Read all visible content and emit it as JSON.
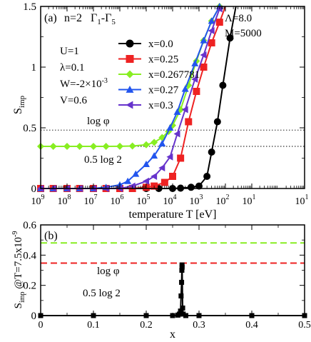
{
  "chart_data": [
    {
      "panel_label": "(a)",
      "type": "line",
      "x_scale": "log",
      "xlim": [
        1e-09,
        10
      ],
      "ylim": [
        0,
        1.5
      ],
      "xlabel": "temperature T [eV]",
      "ylabel_main": "S",
      "ylabel_sub": "imp",
      "x_tick_labels": [
        {
          "value": 1e-09,
          "base": "10",
          "exp": "9"
        },
        {
          "value": 1e-08,
          "base": "10",
          "exp": "8"
        },
        {
          "value": 1e-07,
          "base": "10",
          "exp": "7"
        },
        {
          "value": 1e-06,
          "base": "10",
          "exp": "6"
        },
        {
          "value": 1e-05,
          "base": "10",
          "exp": "5"
        },
        {
          "value": 0.0001,
          "base": "10",
          "exp": "4"
        },
        {
          "value": 0.001,
          "base": "10",
          "exp": "3"
        },
        {
          "value": 0.01,
          "base": "10",
          "exp": "2"
        },
        {
          "value": 0.1,
          "base": "10",
          "exp": "1"
        },
        {
          "value": 10,
          "base": "10",
          "exp": "1"
        }
      ],
      "y_ticks": [
        {
          "value": 0,
          "label": "0"
        },
        {
          "value": 0.5,
          "label": "0.5"
        },
        {
          "value": 1,
          "label": "1"
        },
        {
          "value": 1.5,
          "label": "1.5"
        }
      ],
      "title_parts": {
        "n": "n=2",
        "gamma": "Γ",
        "sub1": "1",
        "dash": "-",
        "sub5": "5"
      },
      "parameters_left": {
        "U": "U=1",
        "lambda": "λ=0.1",
        "W_base": "W=-2×10",
        "W_exp": "-3",
        "V": "V=0.6"
      },
      "parameters_right": {
        "Lambda": "Λ=8.0",
        "M": "M=5000"
      },
      "reference_lines": [
        {
          "label": "log φ",
          "value": 0.481
        },
        {
          "label": "0.5 log 2",
          "value": 0.347
        }
      ],
      "series": [
        {
          "name": "x=0.0",
          "color": "#000000",
          "marker": "circle",
          "x": [
            1e-09,
            3e-09,
            1e-08,
            3e-08,
            1e-07,
            3e-07,
            1e-06,
            3e-06,
            1e-05,
            3e-05,
            0.0001,
            0.0002,
            0.0005,
            0.001,
            0.002,
            0.003,
            0.005,
            0.008,
            0.015,
            0.025
          ],
          "y": [
            0,
            0,
            0,
            0,
            0,
            0,
            0,
            0,
            0,
            0,
            0,
            0.003,
            0.01,
            0.02,
            0.1,
            0.3,
            0.55,
            0.85,
            1.24,
            1.55
          ]
        },
        {
          "name": "x=0.25",
          "color": "#ee2222",
          "marker": "square",
          "x": [
            1e-09,
            3e-09,
            1e-08,
            3e-08,
            1e-07,
            3e-07,
            1e-06,
            3e-06,
            1e-05,
            2e-05,
            5e-05,
            0.0001,
            0.0002,
            0.0004,
            0.0008,
            0.0015,
            0.003,
            0.006,
            0.01
          ],
          "y": [
            0,
            0,
            0,
            0,
            0,
            0,
            0,
            0,
            0.01,
            0.02,
            0.05,
            0.1,
            0.25,
            0.55,
            0.8,
            1.0,
            1.2,
            1.37,
            1.55
          ]
        },
        {
          "name": "x=0.267781",
          "color": "#88ee22",
          "marker": "diamond",
          "x": [
            1e-09,
            3e-09,
            1e-08,
            3e-08,
            1e-07,
            3e-07,
            1e-06,
            3e-06,
            1e-05,
            2e-05,
            4e-05,
            7e-05,
            0.0001,
            0.0002,
            0.0004,
            0.0008,
            0.0015,
            0.003,
            0.006
          ],
          "y": [
            0.347,
            0.347,
            0.347,
            0.347,
            0.347,
            0.347,
            0.348,
            0.35,
            0.36,
            0.38,
            0.42,
            0.47,
            0.52,
            0.65,
            0.85,
            1.05,
            1.22,
            1.38,
            1.5
          ]
        },
        {
          "name": "x=0.27",
          "color": "#2255ee",
          "marker": "triangle-up",
          "x": [
            1e-09,
            3e-09,
            1e-08,
            3e-08,
            1e-07,
            3e-07,
            1e-06,
            2e-06,
            4e-06,
            1e-05,
            2e-05,
            4e-05,
            8e-05,
            0.00015,
            0.0003,
            0.0007,
            0.0015,
            0.003,
            0.006
          ],
          "y": [
            0,
            0,
            0,
            0,
            0,
            0.01,
            0.03,
            0.06,
            0.12,
            0.2,
            0.27,
            0.37,
            0.5,
            0.63,
            0.82,
            1.03,
            1.22,
            1.38,
            1.5
          ]
        },
        {
          "name": "x=0.3",
          "color": "#6633cc",
          "marker": "triangle-left",
          "x": [
            1e-09,
            3e-09,
            1e-08,
            3e-08,
            1e-07,
            3e-07,
            1e-06,
            3e-06,
            1e-05,
            2e-05,
            4e-05,
            8e-05,
            0.00015,
            0.0003,
            0.0007,
            0.0015,
            0.003,
            0.006
          ],
          "y": [
            0,
            0,
            0,
            0,
            0,
            0,
            0,
            0.02,
            0.06,
            0.1,
            0.17,
            0.26,
            0.45,
            0.65,
            0.9,
            1.1,
            1.3,
            1.48
          ]
        }
      ]
    },
    {
      "panel_label": "(b)",
      "type": "line",
      "xlim": [
        0,
        0.5
      ],
      "ylim": [
        0,
        0.6
      ],
      "xlabel": "x",
      "ylabel_main": "S",
      "ylabel_sub": "imp",
      "ylabel_rest": " @T=7.5x10",
      "ylabel_exp": "-9",
      "x_ticks": [
        {
          "value": 0,
          "label": "0"
        },
        {
          "value": 0.1,
          "label": "0.1"
        },
        {
          "value": 0.2,
          "label": "0.2"
        },
        {
          "value": 0.3,
          "label": "0.3"
        },
        {
          "value": 0.4,
          "label": "0.4"
        },
        {
          "value": 0.5,
          "label": "0.5"
        }
      ],
      "y_ticks": [
        {
          "value": 0,
          "label": "0"
        },
        {
          "value": 0.2,
          "label": "0.2"
        },
        {
          "value": 0.4,
          "label": "0.4"
        },
        {
          "value": 0.6,
          "label": "0.6"
        }
      ],
      "reference_lines": [
        {
          "label": "log φ",
          "value": 0.481,
          "color": "#88ee22"
        },
        {
          "label": "0.5 log 2",
          "value": 0.347,
          "color": "#ee2222"
        }
      ],
      "series": [
        {
          "color": "#000000",
          "marker": "square",
          "x": [
            0,
            0.1,
            0.2,
            0.25,
            0.26,
            0.263,
            0.265,
            0.266,
            0.267,
            0.2675,
            0.2678,
            0.268,
            0.269,
            0.27,
            0.275,
            0.3,
            0.4,
            0.5
          ],
          "y": [
            0,
            0,
            0,
            0,
            0.003,
            0.01,
            0.03,
            0.13,
            0.22,
            0.3,
            0.335,
            0.32,
            0.05,
            0.01,
            0,
            0,
            0,
            0
          ]
        }
      ]
    }
  ]
}
